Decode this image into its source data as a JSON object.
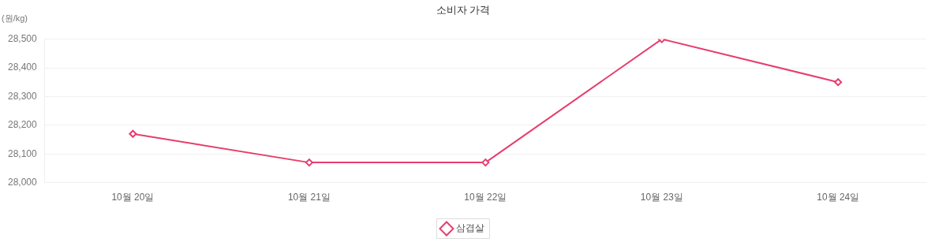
{
  "chart_data": {
    "type": "line",
    "title": "소비자 가격",
    "ylabel": "(원/kg)",
    "categories": [
      "10월 20일",
      "10월 21일",
      "10월 22일",
      "10월 23일",
      "10월 24일"
    ],
    "series": [
      {
        "name": "삼겹살",
        "color": "#e63e6d",
        "values": [
          28170,
          28070,
          28070,
          28500,
          28350
        ]
      }
    ],
    "ylim": [
      28000,
      28500
    ],
    "yticks": [
      {
        "value": 28000,
        "label": "28,000"
      },
      {
        "value": 28100,
        "label": "28,100"
      },
      {
        "value": 28200,
        "label": "28,200"
      },
      {
        "value": 28300,
        "label": "28,300"
      },
      {
        "value": 28400,
        "label": "28,400"
      },
      {
        "value": 28500,
        "label": "28,500"
      }
    ],
    "grid": "y",
    "legend": "bottom",
    "marker": "diamond",
    "line_style": "solid"
  }
}
